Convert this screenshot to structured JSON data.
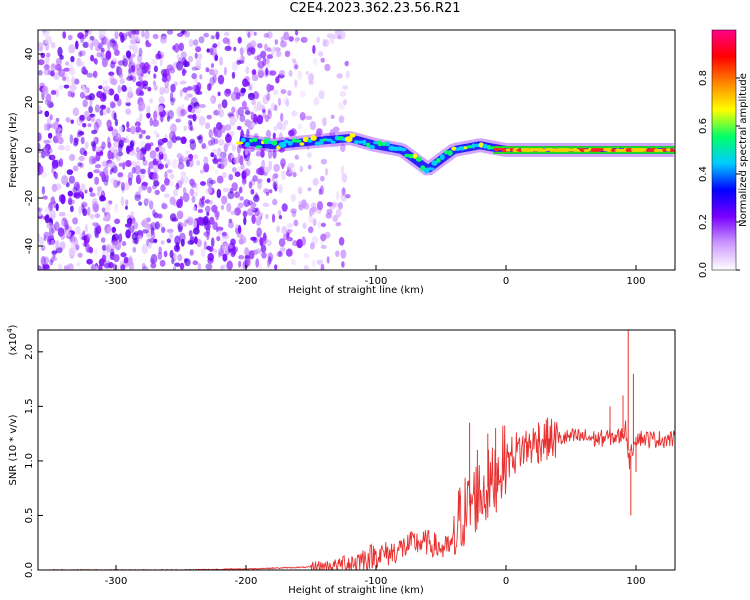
{
  "title": "C2E4.2023.362.23.56.R21",
  "chart_data": [
    {
      "type": "heatmap",
      "xlabel": "Height of straight line (km)",
      "ylabel": "Frequency (Hz)",
      "xlim": [
        -360,
        130
      ],
      "ylim": [
        -50,
        50
      ],
      "xticks": [
        -300,
        -200,
        -100,
        0,
        100
      ],
      "yticks": [
        -40,
        -20,
        0,
        20,
        40
      ],
      "colorbar": {
        "label": "Normalized spectral amplitude",
        "range": [
          0.0,
          1.0
        ],
        "ticks": [
          "0.0",
          "0.2",
          "0.4",
          "0.6",
          "0.8"
        ],
        "colors": [
          "#ffffff",
          "#cc99ff",
          "#7a00ff",
          "#0000ff",
          "#00ccff",
          "#00ff66",
          "#ffff00",
          "#ff8800",
          "#ff0000",
          "#ff0088"
        ]
      },
      "ridge": {
        "x": [
          -205,
          -180,
          -160,
          -140,
          -120,
          -100,
          -80,
          -60,
          -40,
          -20,
          0,
          40,
          80,
          130
        ],
        "y": [
          4,
          2,
          3,
          4,
          5,
          2,
          0,
          -8,
          0,
          2,
          0,
          0,
          0,
          0
        ]
      }
    },
    {
      "type": "line",
      "xlabel": "Height of straight line (km)",
      "ylabel": "SNR (10 * v/v)",
      "yscale_label": "(x10",
      "yscale_exp": "4",
      "yscale_close": ")",
      "xlim": [
        -360,
        130
      ],
      "ylim": [
        0,
        2.2
      ],
      "xticks": [
        -300,
        -200,
        -100,
        0,
        100
      ],
      "yticks": [
        "0.0",
        "0.5",
        "1.0",
        "1.5",
        "2.0"
      ],
      "ytick_values": [
        0,
        0.5,
        1.0,
        1.5,
        2.0
      ],
      "color": "#e83030",
      "x": [
        -360,
        -300,
        -250,
        -200,
        -170,
        -140,
        -120,
        -110,
        -100,
        -90,
        -80,
        -70,
        -60,
        -50,
        -45,
        -40,
        -35,
        -30,
        -25,
        -20,
        -15,
        -10,
        -5,
        0,
        10,
        20,
        30,
        40,
        50,
        60,
        70,
        80,
        88,
        92,
        95,
        98,
        100,
        110,
        120,
        130
      ],
      "y": [
        0.0,
        0.0,
        0.0,
        0.01,
        0.02,
        0.03,
        0.06,
        0.1,
        0.14,
        0.15,
        0.2,
        0.25,
        0.25,
        0.2,
        0.2,
        0.25,
        0.5,
        0.55,
        0.65,
        0.7,
        0.75,
        0.8,
        0.95,
        1.0,
        1.1,
        1.15,
        1.2,
        1.2,
        1.22,
        1.22,
        1.2,
        1.22,
        1.22,
        1.3,
        1.0,
        1.15,
        1.22,
        1.2,
        1.2,
        1.2
      ],
      "spikes": [
        {
          "x": -28,
          "y": 1.35
        },
        {
          "x": -22,
          "y": 1.1
        },
        {
          "x": -14,
          "y": 1.25
        },
        {
          "x": -8,
          "y": 1.3
        },
        {
          "x": 25,
          "y": 1.35
        },
        {
          "x": 80,
          "y": 1.5
        },
        {
          "x": 90,
          "y": 1.6
        },
        {
          "x": 94,
          "y": 2.2
        },
        {
          "x": 96,
          "y": 0.5
        },
        {
          "x": 98,
          "y": 1.8
        },
        {
          "x": 100,
          "y": 0.9
        }
      ]
    }
  ]
}
